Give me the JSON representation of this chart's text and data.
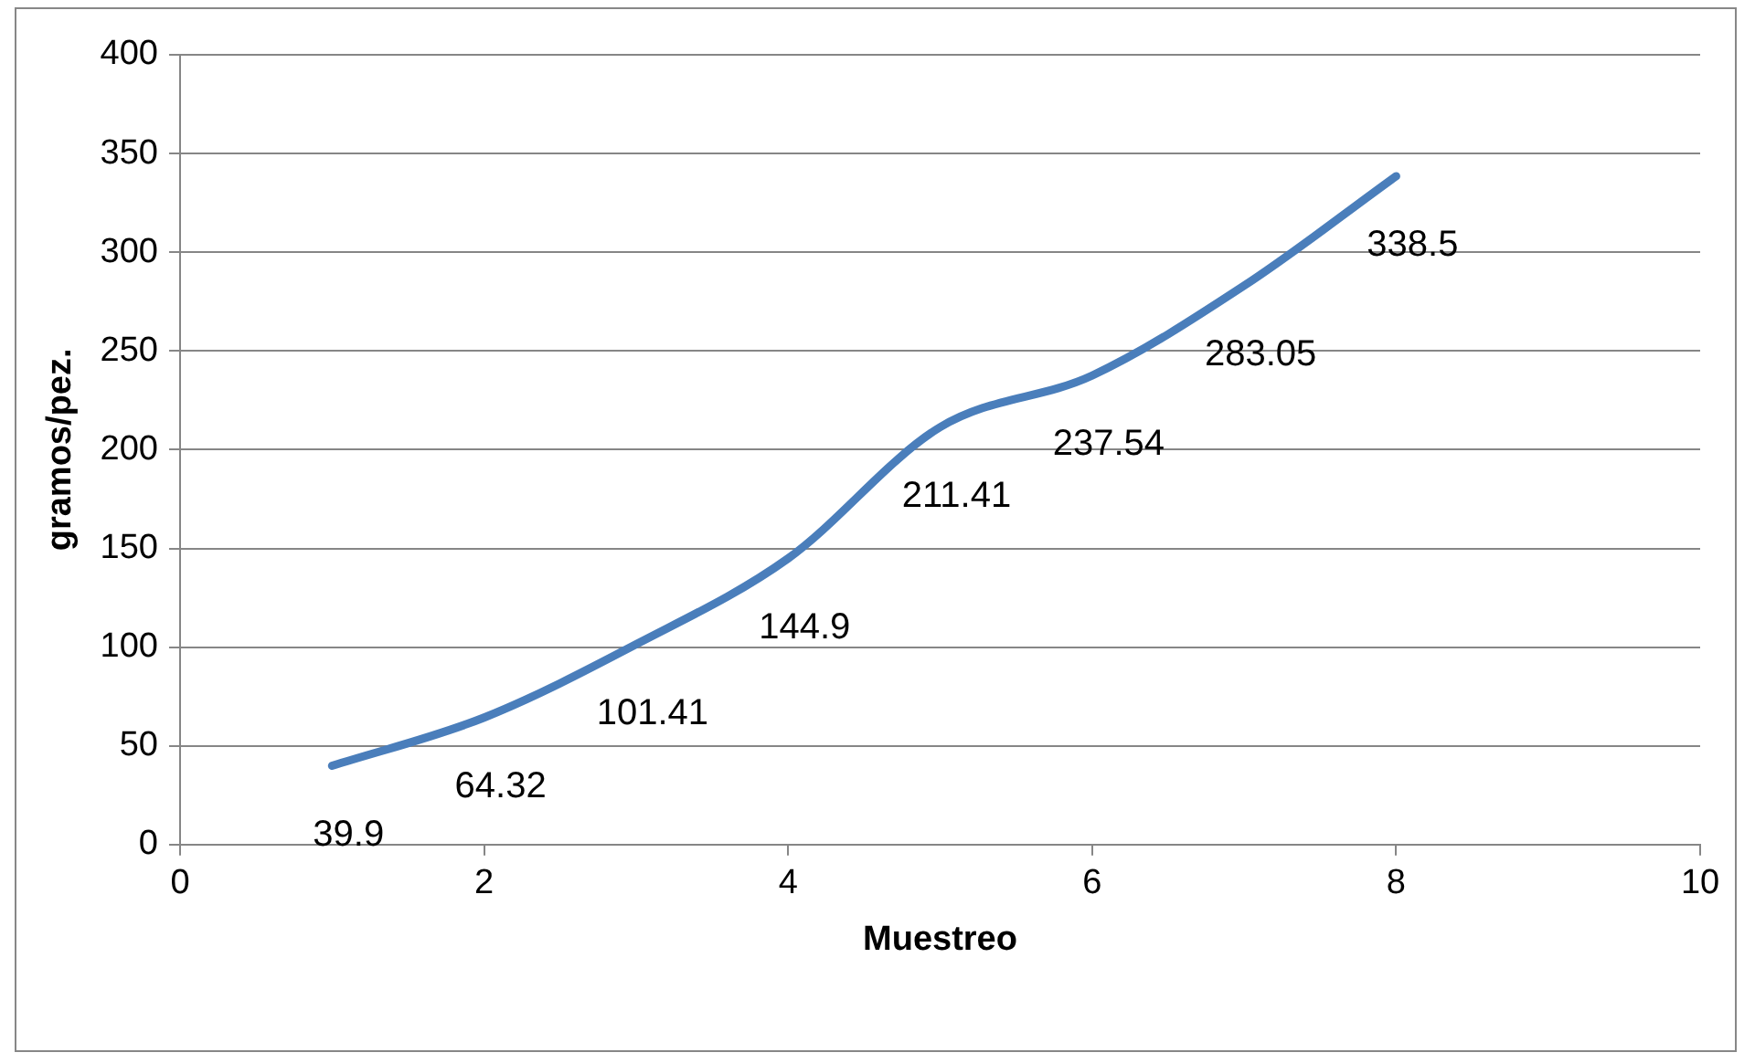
{
  "chart_data": {
    "type": "line",
    "xlabel": "Muestreo",
    "ylabel": "gramos/pez.",
    "x": [
      1,
      2,
      3,
      4,
      5,
      6,
      7,
      8
    ],
    "series": [
      {
        "color": "#4a7ebb",
        "values": [
          39.9,
          64.32,
          101.41,
          144.9,
          211.41,
          237.54,
          283.05,
          338.5
        ]
      }
    ],
    "xlim": [
      0,
      10
    ],
    "xticks": [
      0,
      2,
      4,
      6,
      8,
      10
    ],
    "ylim": [
      0,
      400
    ],
    "yticks": [
      0,
      50,
      100,
      150,
      200,
      250,
      300,
      350,
      400
    ],
    "grid": "y",
    "legend": false,
    "marker": "none",
    "line_style": "solid",
    "data_labels": true
  }
}
